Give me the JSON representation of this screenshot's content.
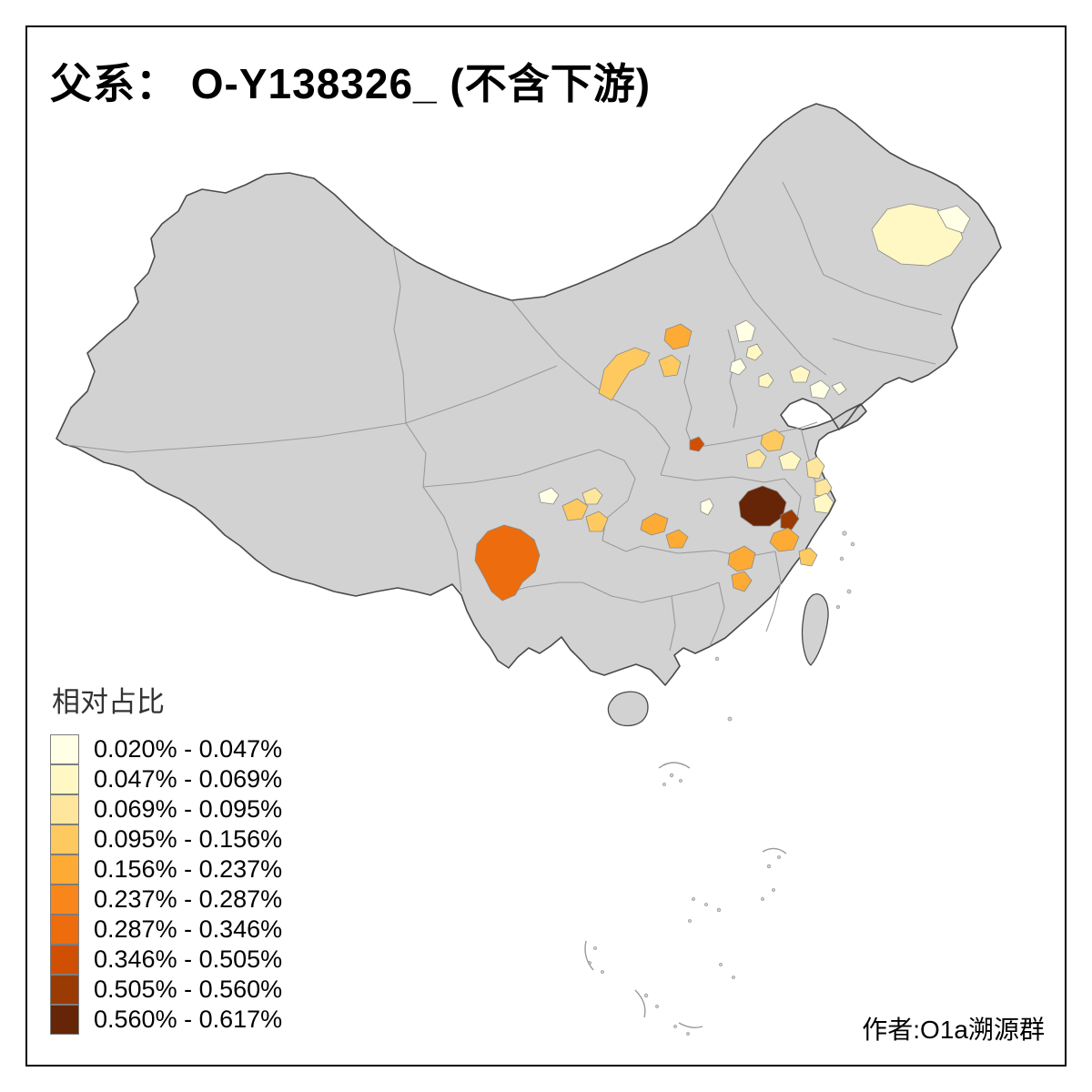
{
  "title": "父系： O-Y138326_ (不含下游)",
  "credit": "作者:O1a溯源群",
  "legend": {
    "title": "相对占比",
    "items": [
      {
        "label": "0.020% - 0.047%",
        "color": "#FFFFE5"
      },
      {
        "label": "0.047% - 0.069%",
        "color": "#FFF8C4"
      },
      {
        "label": "0.069% - 0.095%",
        "color": "#FEE79C"
      },
      {
        "label": "0.095% - 0.156%",
        "color": "#FEC95F"
      },
      {
        "label": "0.156% - 0.237%",
        "color": "#FDAB35"
      },
      {
        "label": "0.237% - 0.287%",
        "color": "#F8861B"
      },
      {
        "label": "0.287% - 0.346%",
        "color": "#EC6C0E"
      },
      {
        "label": "0.346% - 0.505%",
        "color": "#D04F03"
      },
      {
        "label": "0.505% - 0.560%",
        "color": "#9A3B03"
      },
      {
        "label": "0.560% - 0.617%",
        "color": "#662506"
      }
    ]
  },
  "map": {
    "land_color": "#d2d2d2",
    "outline_color": "#4a4a4a",
    "border_color": "#9a9a9a",
    "region_border_color": "#8a8a8a",
    "regions": {
      "r01": 2,
      "r02": 1,
      "r03": 1,
      "r04": 2,
      "r05": 1,
      "r06": 2,
      "r07": 5,
      "r08": 4,
      "r09": 4,
      "r10": 2,
      "r11": 1,
      "r12": 1,
      "r13": 8,
      "r14": 4,
      "r15": 3,
      "r16": 2,
      "r17": 3,
      "r18": 3,
      "r19": 10,
      "r20": 9,
      "r21": 2,
      "r22": 5,
      "r23": 4,
      "r24": 5,
      "r25": 5,
      "r26": 1,
      "r27": 5,
      "r28": 5,
      "r29": 1,
      "r30": 4,
      "r31": 4,
      "r32": 3,
      "r33": 7
    }
  }
}
